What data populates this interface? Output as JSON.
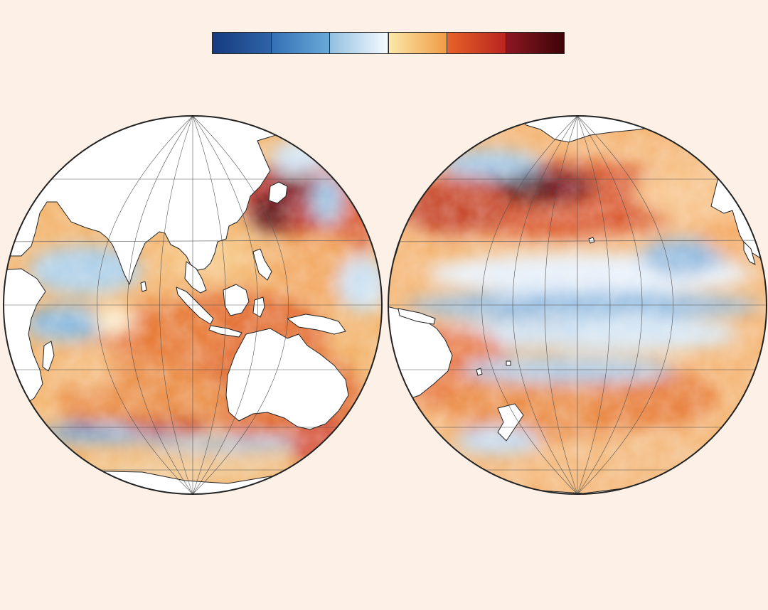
{
  "figure": {
    "colorbar": {
      "segments": [
        {
          "from": "#163b7e",
          "to": "#2f63a8"
        },
        {
          "from": "#3270b4",
          "to": "#69a9d8"
        },
        {
          "from": "#92c0e1",
          "to": "#f7fbff"
        },
        {
          "from": "#fbe8a8",
          "to": "#f19b45"
        },
        {
          "from": "#e86228",
          "to": "#b82520"
        },
        {
          "from": "#8d1722",
          "to": "#3d0409"
        }
      ]
    },
    "globes": [
      {
        "name": "indian-ocean-west-pacific-hemisphere"
      },
      {
        "name": "pacific-ocean-hemisphere"
      }
    ],
    "colors": {
      "background": "#fdf1e7",
      "land": "#ffffff",
      "coast": "#222222",
      "graticule": "#555555"
    }
  }
}
